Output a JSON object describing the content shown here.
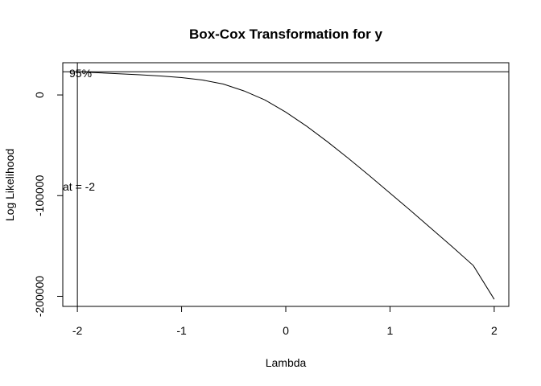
{
  "chart_data": {
    "type": "line",
    "title": "Box-Cox Transformation for y",
    "xlabel": "Lambda",
    "ylabel": "Log Likelihood",
    "xlim": [
      -2.14,
      2.14
    ],
    "ylim": [
      -210000,
      32000
    ],
    "x_ticks": [
      -2,
      -1,
      0,
      1,
      2
    ],
    "x_tick_labels": [
      "-2",
      "-1",
      "0",
      "1",
      "2"
    ],
    "y_ticks": [
      0,
      -100000,
      -200000
    ],
    "y_tick_labels": [
      "0",
      "-100000",
      "-200000"
    ],
    "grid": false,
    "legend": "none",
    "series": [
      {
        "x": [
          -2,
          -1.8,
          -1.6,
          -1.4,
          -1.2,
          -1,
          -0.8,
          -0.6,
          -0.4,
          -0.2,
          0,
          0.2,
          0.4,
          0.6,
          0.8,
          1,
          1.2,
          1.4,
          1.6,
          1.8,
          2
        ],
        "y": [
          23000,
          22000,
          21000,
          20000,
          18800,
          17200,
          14800,
          10800,
          4000,
          -5000,
          -17000,
          -31000,
          -46500,
          -63000,
          -80000,
          -97500,
          -115000,
          -133000,
          -151000,
          -169500,
          -203000
        ]
      }
    ],
    "hline": {
      "y": 23000,
      "label": "95%"
    },
    "vline": {
      "x": -2,
      "label": "at = -2"
    },
    "color": "#000000"
  }
}
